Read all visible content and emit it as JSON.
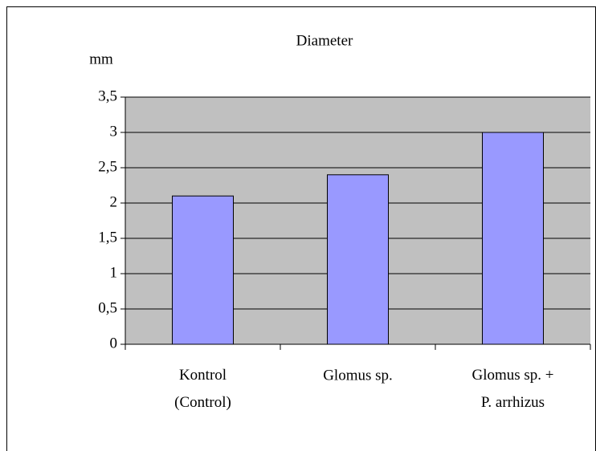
{
  "chart_data": {
    "type": "bar",
    "title": "Diameter",
    "y_label": "mm",
    "categories": [
      "Kontrol (Control)",
      "Glomus sp.",
      "Glomus sp. + P. arrhizus"
    ],
    "values": [
      2.1,
      2.4,
      3
    ],
    "color": "#9999ff",
    "ylim": [
      0,
      3.5
    ],
    "yticks": [
      0,
      {
        "value": 0.5,
        "label": "0,5"
      },
      1,
      {
        "value": 1.5,
        "label": "1,5"
      },
      2,
      {
        "value": 2.5,
        "label": "2,5"
      },
      3,
      {
        "value": 3.5,
        "label": "3,5"
      }
    ],
    "grid": true
  }
}
